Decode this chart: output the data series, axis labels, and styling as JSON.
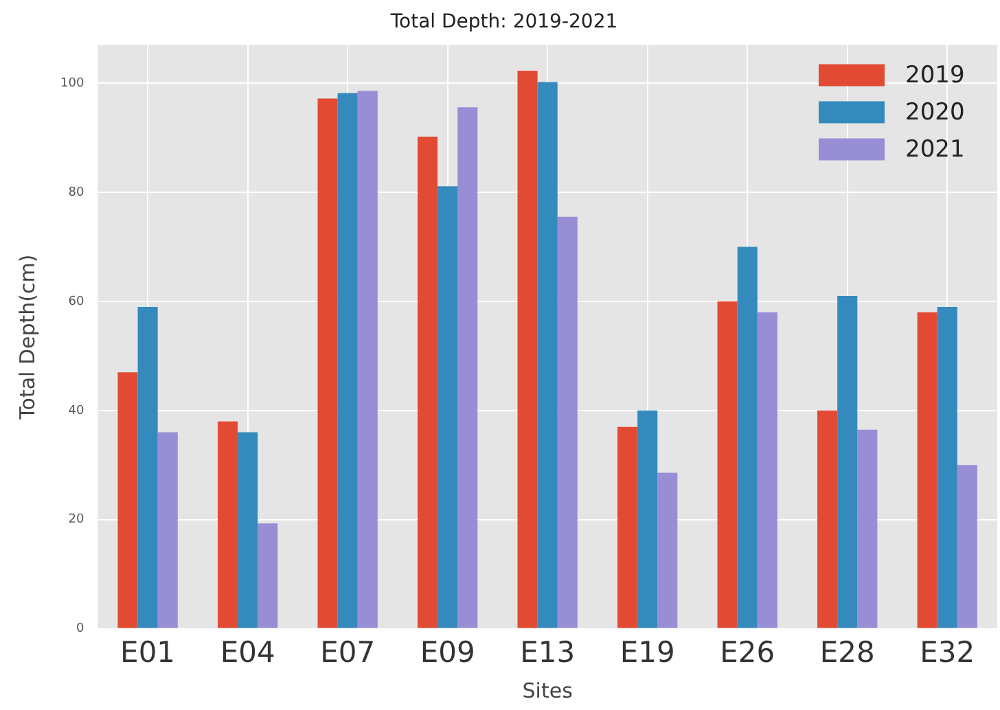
{
  "chart_data": {
    "type": "bar",
    "title": "Total Depth: 2019-2021",
    "xlabel": "Sites",
    "ylabel": "Total Depth(cm)",
    "categories": [
      "E01",
      "E04",
      "E07",
      "E09",
      "E13",
      "E19",
      "E26",
      "E28",
      "E32"
    ],
    "series": [
      {
        "name": "2019",
        "color": "#e24a33",
        "values": [
          47,
          38,
          97.2,
          90.2,
          102.3,
          37,
          60,
          40,
          58
        ]
      },
      {
        "name": "2020",
        "color": "#348abd",
        "values": [
          59,
          36,
          98.2,
          81.1,
          100.2,
          40,
          70,
          61,
          59
        ]
      },
      {
        "name": "2021",
        "color": "#988ed5",
        "values": [
          36,
          19.3,
          98.6,
          95.6,
          75.5,
          28.6,
          58,
          36.5,
          30
        ]
      }
    ],
    "ylim": [
      0,
      107
    ],
    "yticks": [
      0,
      20,
      40,
      60,
      80,
      100
    ],
    "grid": true,
    "legend": "top right"
  }
}
